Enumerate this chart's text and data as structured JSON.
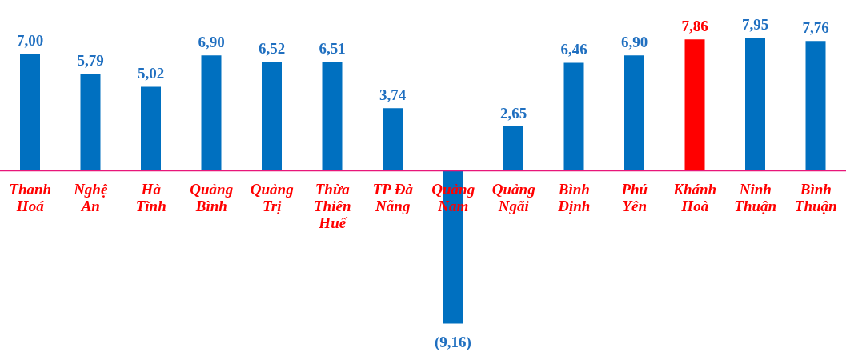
{
  "chart_data": {
    "type": "bar",
    "categories": [
      "Thanh Hoá",
      "Nghệ An",
      "Hà Tĩnh",
      "Quảng Bình",
      "Quảng Trị",
      "Thừa Thiên Huế",
      "TP Đà Nẵng",
      "Quảng Nam",
      "Quảng Ngãi",
      "Bình Định",
      "Phú Yên",
      "Khánh Hoà",
      "Ninh Thuận",
      "Bình Thuận"
    ],
    "values": [
      7.0,
      5.79,
      5.02,
      6.9,
      6.52,
      6.51,
      3.74,
      -9.16,
      2.65,
      6.46,
      6.9,
      7.86,
      7.95,
      7.76
    ],
    "colors": [
      "#0070c0",
      "#0070c0",
      "#0070c0",
      "#0070c0",
      "#0070c0",
      "#0070c0",
      "#0070c0",
      "#0070c0",
      "#0070c0",
      "#0070c0",
      "#0070c0",
      "#ff0000",
      "#0070c0",
      "#0070c0"
    ],
    "value_labels": [
      "7,00",
      "5,79",
      "5,02",
      "6,90",
      "6,52",
      "6,51",
      "3,74",
      "(9,16)",
      "2,65",
      "6,46",
      "6,90",
      "7,86",
      "7,95",
      "7,76"
    ],
    "grid": false,
    "legend": false
  }
}
